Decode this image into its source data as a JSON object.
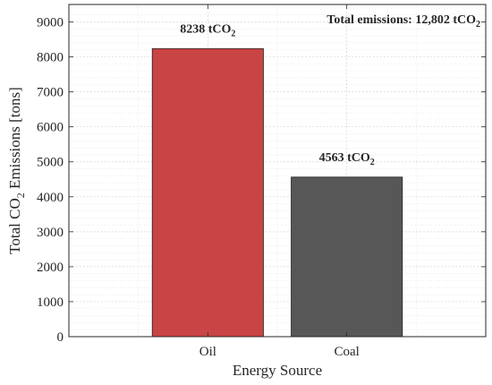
{
  "chart_data": {
    "type": "bar",
    "categories": [
      "Oil",
      "Coal"
    ],
    "values": [
      8238,
      4563
    ],
    "colors": [
      "#c94444",
      "#575757"
    ],
    "data_labels": [
      {
        "main": "8238 tCO",
        "sub": "2"
      },
      {
        "main": "4563 tCO",
        "sub": "2"
      }
    ],
    "annotation": {
      "main": "Total emissions: 12,802 tCO",
      "sub": "2"
    },
    "xlabel": "Energy Source",
    "ylabel": {
      "pre": "Total CO",
      "sub": "2",
      "post": " Emissions [tons]"
    },
    "ylim": [
      0,
      9500
    ],
    "yticks": [
      0,
      1000,
      2000,
      3000,
      4000,
      5000,
      6000,
      7000,
      8000,
      9000
    ],
    "grid": true,
    "legend": "none"
  }
}
